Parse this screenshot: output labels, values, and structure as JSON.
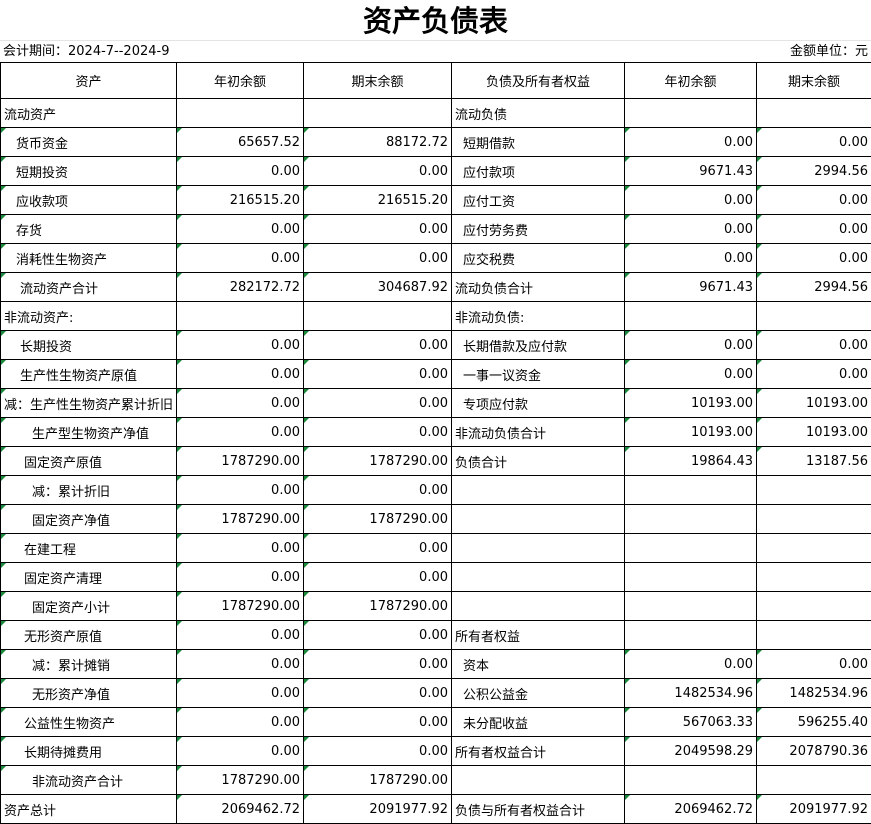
{
  "title": "资产负债表",
  "info": {
    "period": "会计期间：2024-7--2024-9",
    "unit": "金额单位：元"
  },
  "table": {
    "header": [
      "资产",
      "年初余额",
      "期末余额",
      "负债及所有者权益",
      "年初余额",
      "期末余额"
    ],
    "rows": [
      [
        "流动资产",
        null,
        null,
        "流动负债",
        null,
        null
      ],
      [
        "货币资金",
        "65657.52",
        "88172.72",
        "短期借款",
        "0.00",
        "0.00"
      ],
      [
        "短期投资",
        "0.00",
        "0.00",
        "应付款项",
        "9671.43",
        "2994.56"
      ],
      [
        "应收款项",
        "216515.20",
        "216515.20",
        "应付工资",
        "0.00",
        "0.00"
      ],
      [
        "存货",
        "0.00",
        "0.00",
        "应付劳务费",
        "0.00",
        "0.00"
      ],
      [
        "消耗性生物资产",
        "0.00",
        "0.00",
        "应交税费",
        "0.00",
        "0.00"
      ],
      [
        "流动资产合计",
        "282172.72",
        "304687.92",
        "流动负债合计",
        "9671.43",
        "2994.56"
      ],
      [
        "非流动资产:",
        null,
        null,
        "非流动负债:",
        null,
        null
      ],
      [
        "长期投资",
        "0.00",
        "0.00",
        "长期借款及应付款",
        "0.00",
        "0.00"
      ],
      [
        "生产性生物资产原值",
        "0.00",
        "0.00",
        "一事一议资金",
        "0.00",
        "0.00"
      ],
      [
        "减：生产性生物资产累计折旧",
        "0.00",
        "0.00",
        "专项应付款",
        "10193.00",
        "10193.00"
      ],
      [
        "生产型生物资产净值",
        "0.00",
        "0.00",
        "非流动负债合计",
        "10193.00",
        "10193.00"
      ],
      [
        "固定资产原值",
        "1787290.00",
        "1787290.00",
        "负债合计",
        "19864.43",
        "13187.56"
      ],
      [
        "减：累计折旧",
        "0.00",
        "0.00",
        null,
        null,
        null
      ],
      [
        "固定资产净值",
        "1787290.00",
        "1787290.00",
        null,
        null,
        null
      ],
      [
        "在建工程",
        "0.00",
        "0.00",
        null,
        null,
        null
      ],
      [
        "固定资产清理",
        "0.00",
        "0.00",
        null,
        null,
        null
      ],
      [
        "固定资产小计",
        "1787290.00",
        "1787290.00",
        null,
        null,
        null
      ],
      [
        "无形资产原值",
        "0.00",
        "0.00",
        "所有者权益",
        null,
        null
      ],
      [
        "减：累计摊销",
        "0.00",
        "0.00",
        "资本",
        "0.00",
        "0.00"
      ],
      [
        "无形资产净值",
        "0.00",
        "0.00",
        "公积公益金",
        "1482534.96",
        "1482534.96"
      ],
      [
        "公益性生物资产",
        "0.00",
        "0.00",
        "未分配收益",
        "567063.33",
        "596255.40"
      ],
      [
        "长期待摊费用",
        "0.00",
        "0.00",
        "所有者权益合计",
        "2049598.29",
        "2078790.36"
      ],
      [
        "非流动资产合计",
        "1787290.00",
        "1787290.00",
        null,
        null,
        null
      ],
      [
        "资产总计",
        "2069462.72",
        "2091977.92",
        "负债与所有者权益合计",
        "2069462.72",
        "2091977.92"
      ]
    ]
  }
}
